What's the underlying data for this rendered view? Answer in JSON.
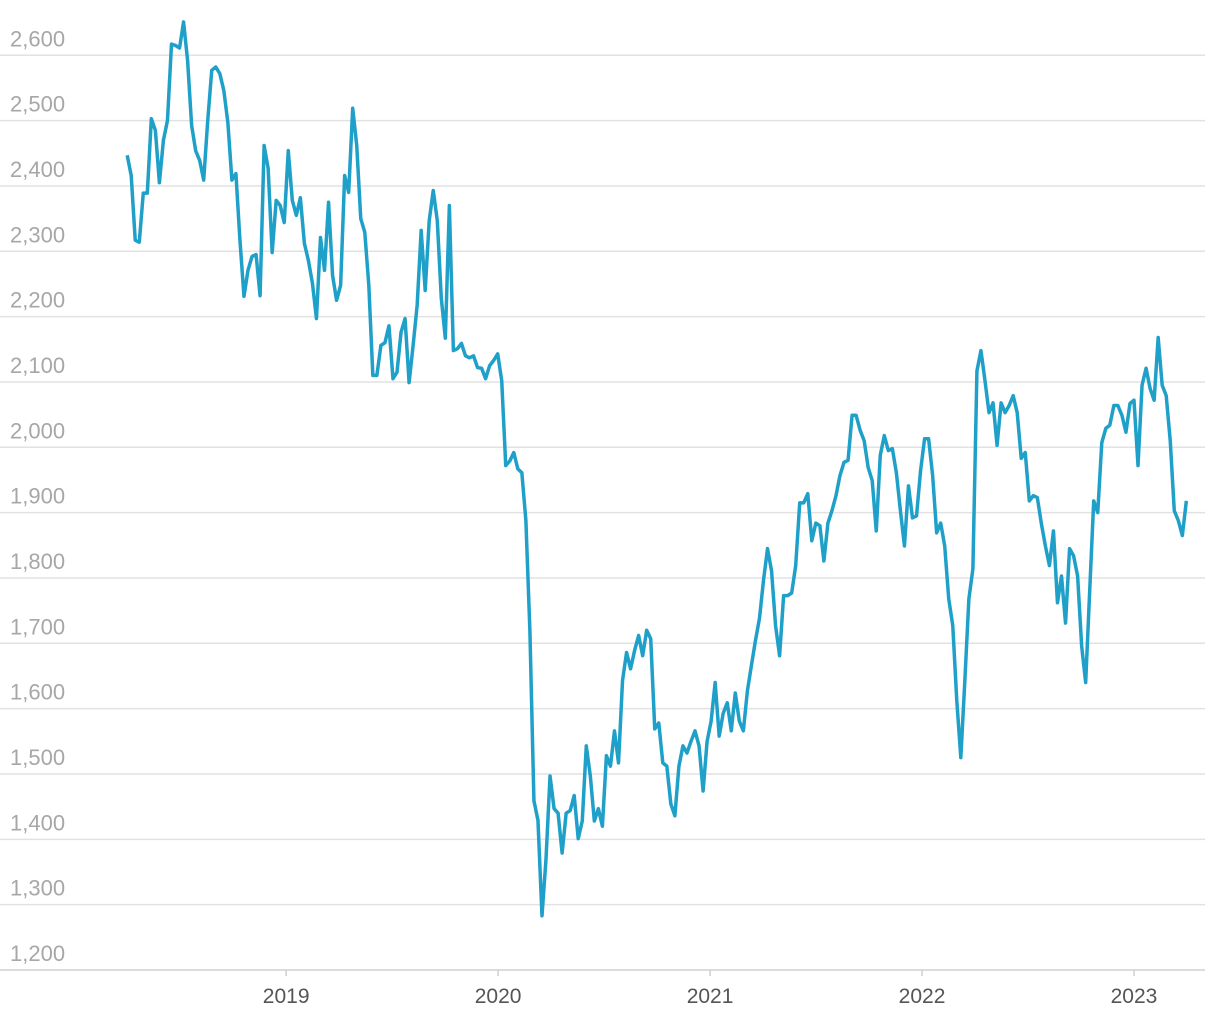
{
  "chart_data": {
    "type": "line",
    "x": [
      2018.25,
      2018.269,
      2018.288,
      2018.307,
      2018.326,
      2018.345,
      2018.364,
      2018.383,
      2018.402,
      2018.421,
      2018.44,
      2018.459,
      2018.478,
      2018.497,
      2018.516,
      2018.535,
      2018.554,
      2018.573,
      2018.592,
      2018.611,
      2018.63,
      2018.649,
      2018.668,
      2018.687,
      2018.706,
      2018.725,
      2018.744,
      2018.763,
      2018.782,
      2018.801,
      2018.82,
      2018.839,
      2018.858,
      2018.877,
      2018.896,
      2018.915,
      2018.934,
      2018.953,
      2018.972,
      2018.991,
      2019.01,
      2019.029,
      2019.048,
      2019.067,
      2019.086,
      2019.105,
      2019.124,
      2019.143,
      2019.162,
      2019.181,
      2019.2,
      2019.219,
      2019.238,
      2019.257,
      2019.276,
      2019.295,
      2019.314,
      2019.333,
      2019.352,
      2019.371,
      2019.39,
      2019.409,
      2019.428,
      2019.447,
      2019.466,
      2019.485,
      2019.504,
      2019.523,
      2019.542,
      2019.561,
      2019.58,
      2019.599,
      2019.618,
      2019.637,
      2019.656,
      2019.675,
      2019.694,
      2019.713,
      2019.732,
      2019.751,
      2019.77,
      2019.789,
      2019.808,
      2019.827,
      2019.846,
      2019.865,
      2019.884,
      2019.903,
      2019.922,
      2019.941,
      2019.96,
      2019.979,
      2019.998,
      2020.017,
      2020.036,
      2020.055,
      2020.074,
      2020.093,
      2020.112,
      2020.131,
      2020.15,
      2020.169,
      2020.188,
      2020.207,
      2020.226,
      2020.245,
      2020.264,
      2020.283,
      2020.302,
      2020.321,
      2020.34,
      2020.359,
      2020.378,
      2020.397,
      2020.416,
      2020.435,
      2020.454,
      2020.473,
      2020.492,
      2020.511,
      2020.53,
      2020.549,
      2020.568,
      2020.587,
      2020.606,
      2020.625,
      2020.644,
      2020.663,
      2020.682,
      2020.701,
      2020.72,
      2020.739,
      2020.758,
      2020.777,
      2020.796,
      2020.815,
      2020.834,
      2020.853,
      2020.872,
      2020.891,
      2020.91,
      2020.929,
      2020.948,
      2020.967,
      2020.986,
      2021.005,
      2021.024,
      2021.043,
      2021.062,
      2021.081,
      2021.1,
      2021.119,
      2021.138,
      2021.157,
      2021.176,
      2021.195,
      2021.214,
      2021.233,
      2021.252,
      2021.271,
      2021.29,
      2021.309,
      2021.328,
      2021.347,
      2021.366,
      2021.385,
      2021.404,
      2021.423,
      2021.442,
      2021.461,
      2021.48,
      2021.499,
      2021.518,
      2021.537,
      2021.556,
      2021.575,
      2021.594,
      2021.613,
      2021.632,
      2021.651,
      2021.67,
      2021.689,
      2021.708,
      2021.727,
      2021.746,
      2021.765,
      2021.784,
      2021.803,
      2021.822,
      2021.841,
      2021.86,
      2021.879,
      2021.898,
      2021.917,
      2021.936,
      2021.955,
      2021.974,
      2021.993,
      2022.012,
      2022.031,
      2022.05,
      2022.069,
      2022.088,
      2022.107,
      2022.126,
      2022.145,
      2022.164,
      2022.183,
      2022.202,
      2022.221,
      2022.24,
      2022.259,
      2022.278,
      2022.297,
      2022.316,
      2022.335,
      2022.354,
      2022.373,
      2022.392,
      2022.411,
      2022.43,
      2022.449,
      2022.468,
      2022.487,
      2022.506,
      2022.525,
      2022.544,
      2022.563,
      2022.582,
      2022.601,
      2022.62,
      2022.639,
      2022.658,
      2022.677,
      2022.696,
      2022.715,
      2022.734,
      2022.753,
      2022.772,
      2022.791,
      2022.81,
      2022.829,
      2022.848,
      2022.867,
      2022.886,
      2022.905,
      2022.924,
      2022.943,
      2022.962,
      2022.981,
      2023.0,
      2023.019,
      2023.038,
      2023.057,
      2023.076,
      2023.095,
      2023.114,
      2023.133,
      2023.152,
      2023.171,
      2023.19,
      2023.209,
      2023.228,
      2023.247
    ],
    "series": [
      {
        "color": "#1fa0c9",
        "values": [
          2447,
          2416,
          2317,
          2314,
          2389,
          2389,
          2503,
          2485,
          2405,
          2470,
          2500,
          2617,
          2615,
          2611,
          2651,
          2592,
          2493,
          2454,
          2439,
          2409,
          2500,
          2577,
          2582,
          2572,
          2546,
          2497,
          2409,
          2419,
          2317,
          2231,
          2271,
          2292,
          2295,
          2232,
          2462,
          2427,
          2298,
          2378,
          2370,
          2344,
          2454,
          2378,
          2355,
          2382,
          2312,
          2286,
          2251,
          2197,
          2321,
          2271,
          2375,
          2263,
          2225,
          2248,
          2416,
          2390,
          2519,
          2462,
          2350,
          2329,
          2248,
          2110,
          2110,
          2156,
          2160,
          2186,
          2105,
          2115,
          2176,
          2197,
          2099,
          2156,
          2217,
          2332,
          2240,
          2347,
          2393,
          2347,
          2228,
          2167,
          2370,
          2148,
          2151,
          2159,
          2140,
          2137,
          2140,
          2122,
          2121,
          2105,
          2125,
          2133,
          2143,
          2102,
          1972,
          1979,
          1992,
          1967,
          1961,
          1888,
          1719,
          1459,
          1429,
          1283,
          1370,
          1497,
          1447,
          1440,
          1379,
          1440,
          1444,
          1467,
          1401,
          1428,
          1543,
          1497,
          1428,
          1447,
          1420,
          1528,
          1512,
          1566,
          1517,
          1643,
          1686,
          1661,
          1689,
          1712,
          1681,
          1720,
          1707,
          1569,
          1578,
          1517,
          1512,
          1454,
          1436,
          1512,
          1543,
          1532,
          1550,
          1566,
          1543,
          1474,
          1550,
          1581,
          1640,
          1558,
          1593,
          1609,
          1566,
          1624,
          1581,
          1566,
          1627,
          1666,
          1704,
          1738,
          1796,
          1845,
          1811,
          1727,
          1681,
          1773,
          1773,
          1777,
          1819,
          1915,
          1915,
          1929,
          1857,
          1884,
          1880,
          1826,
          1884,
          1903,
          1926,
          1957,
          1977,
          1980,
          2049,
          2049,
          2026,
          2010,
          1969,
          1949,
          1872,
          1988,
          2018,
          1995,
          1998,
          1961,
          1903,
          1849,
          1941,
          1892,
          1895,
          1964,
          2013,
          2013,
          1957,
          1869,
          1884,
          1849,
          1768,
          1727,
          1612,
          1525,
          1643,
          1768,
          1814,
          2117,
          2148,
          2102,
          2053,
          2068,
          2003,
          2068,
          2053,
          2064,
          2079,
          2053,
          1983,
          1992,
          1918,
          1926,
          1923,
          1883,
          1849,
          1819,
          1872,
          1762,
          1803,
          1731,
          1845,
          1834,
          1803,
          1696,
          1640,
          1780,
          1918,
          1900,
          2007,
          2029,
          2034,
          2064,
          2064,
          2049,
          2023,
          2067,
          2072,
          1972,
          2095,
          2121,
          2090,
          2072,
          2168,
          2095,
          2079,
          2010,
          1903,
          1888,
          1865,
          1918
        ]
      }
    ],
    "xlim": [
      2017.65,
      2023.335
    ],
    "xticks": [
      2019,
      2020,
      2021,
      2022,
      2023
    ],
    "ylim": [
      1200,
      2680
    ],
    "yticks": [
      {
        "value": 1200,
        "label": "1,200"
      },
      {
        "value": 1300,
        "label": "1,300"
      },
      {
        "value": 1400,
        "label": "1,400"
      },
      {
        "value": 1500,
        "label": "1,500"
      },
      {
        "value": 1600,
        "label": "1,600"
      },
      {
        "value": 1700,
        "label": "1,700"
      },
      {
        "value": 1800,
        "label": "1,800"
      },
      {
        "value": 1900,
        "label": "1,900"
      },
      {
        "value": 2000,
        "label": "2,000"
      },
      {
        "value": 2100,
        "label": "2,100"
      },
      {
        "value": 2200,
        "label": "2,200"
      },
      {
        "value": 2300,
        "label": "2,300"
      },
      {
        "value": 2400,
        "label": "2,400"
      },
      {
        "value": 2500,
        "label": "2,500"
      },
      {
        "value": 2600,
        "label": "2,600"
      }
    ],
    "grid": true
  }
}
